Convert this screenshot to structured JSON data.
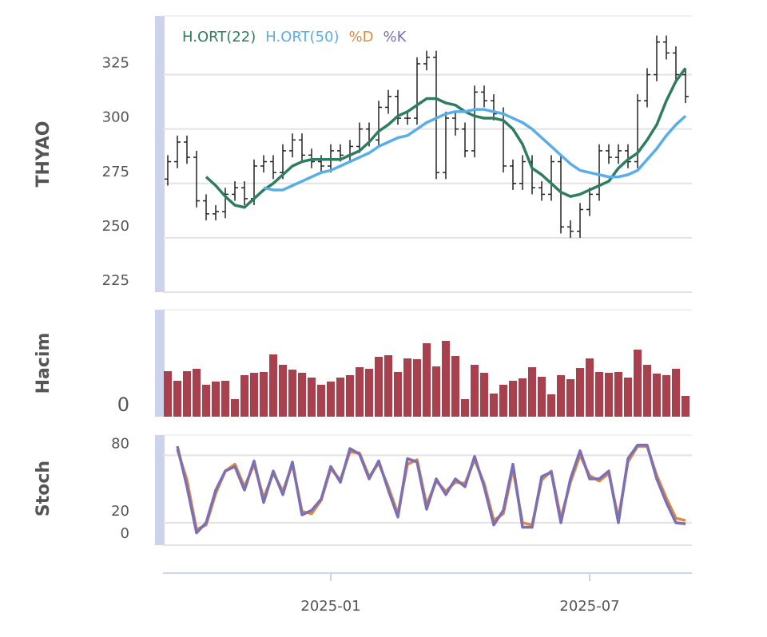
{
  "chart_data": [
    {
      "type": "ohlc",
      "title": "THYAO",
      "color": "#222222",
      "open": [
        277,
        285,
        294,
        287,
        267,
        261,
        262,
        270,
        273,
        268,
        283,
        285,
        280,
        290,
        295,
        288,
        285,
        283,
        290,
        288,
        292,
        300,
        295,
        310,
        315,
        305,
        305,
        330,
        333,
        280,
        305,
        300,
        290,
        317,
        313,
        307,
        283,
        275,
        285,
        273,
        270,
        285,
        255,
        253,
        263,
        270,
        290,
        287,
        290,
        285,
        313,
        325,
        340,
        335,
        325
      ],
      "high": [
        288,
        297,
        297,
        290,
        270,
        265,
        273,
        276,
        276,
        286,
        288,
        288,
        293,
        298,
        298,
        291,
        288,
        293,
        293,
        295,
        303,
        303,
        313,
        318,
        318,
        308,
        333,
        336,
        336,
        308,
        308,
        303,
        320,
        320,
        316,
        310,
        286,
        288,
        288,
        276,
        288,
        288,
        258,
        266,
        273,
        293,
        293,
        293,
        293,
        316,
        328,
        343,
        343,
        338,
        328
      ],
      "low": [
        274,
        282,
        284,
        264,
        258,
        258,
        259,
        267,
        265,
        265,
        280,
        277,
        277,
        287,
        285,
        282,
        280,
        280,
        285,
        285,
        289,
        292,
        292,
        307,
        302,
        302,
        302,
        327,
        277,
        277,
        297,
        287,
        287,
        310,
        304,
        280,
        272,
        272,
        270,
        267,
        267,
        252,
        250,
        250,
        260,
        267,
        284,
        284,
        282,
        282,
        310,
        322,
        332,
        322,
        312
      ],
      "close": [
        285,
        294,
        287,
        267,
        261,
        262,
        270,
        273,
        268,
        283,
        285,
        280,
        290,
        295,
        288,
        285,
        283,
        290,
        288,
        292,
        300,
        295,
        310,
        315,
        305,
        305,
        330,
        333,
        280,
        305,
        300,
        290,
        317,
        313,
        307,
        283,
        275,
        285,
        273,
        270,
        285,
        255,
        253,
        263,
        270,
        290,
        287,
        290,
        285,
        313,
        325,
        340,
        335,
        325,
        315
      ],
      "series": [
        {
          "name": "H.ORT(22)",
          "color": "#2e7d63",
          "values": [
            null,
            null,
            null,
            null,
            278,
            274,
            269,
            265,
            264,
            268,
            272,
            275,
            279,
            283,
            285,
            286,
            286,
            286,
            286,
            288,
            290,
            294,
            299,
            302,
            306,
            308,
            311,
            314,
            314,
            312,
            311,
            308,
            306,
            305,
            305,
            304,
            300,
            293,
            282,
            279,
            275,
            271,
            269,
            270,
            272,
            274,
            276,
            282,
            286,
            289,
            295,
            302,
            313,
            322,
            328
          ]
        },
        {
          "name": "H.ORT(50)",
          "color": "#5aaee8",
          "values": [
            null,
            null,
            null,
            null,
            null,
            null,
            null,
            null,
            null,
            null,
            273,
            272,
            272,
            274,
            276,
            278,
            280,
            281,
            283,
            285,
            287,
            289,
            292,
            294,
            296,
            297,
            300,
            303,
            305,
            307,
            308,
            308,
            309,
            309,
            308,
            307,
            305,
            303,
            300,
            296,
            292,
            288,
            284,
            281,
            280,
            279,
            278,
            278,
            279,
            281,
            286,
            291,
            297,
            302,
            306
          ]
        }
      ],
      "ylim": [
        225,
        352
      ],
      "yticks": [
        225,
        250,
        275,
        300,
        325
      ],
      "grid": true
    },
    {
      "type": "bar",
      "title": "Hacim",
      "color": "#a8404d",
      "values": [
        57,
        45,
        57,
        60,
        40,
        44,
        45,
        22,
        52,
        55,
        56,
        78,
        65,
        59,
        55,
        49,
        40,
        44,
        49,
        52,
        62,
        60,
        75,
        77,
        56,
        73,
        72,
        92,
        63,
        95,
        76,
        22,
        65,
        55,
        29,
        40,
        45,
        48,
        62,
        50,
        28,
        52,
        47,
        61,
        73,
        56,
        55,
        56,
        49,
        84,
        65,
        54,
        52,
        60,
        26
      ],
      "ylim": [
        0,
        134
      ],
      "yticks": [
        0
      ],
      "grid": false
    },
    {
      "type": "line",
      "title": "Stoch",
      "categories": [
        null,
        null,
        null,
        null,
        null,
        null,
        null,
        null,
        null,
        null,
        null,
        null,
        null,
        null,
        null,
        null,
        null,
        "2025-01",
        null,
        null,
        null,
        null,
        null,
        null,
        null,
        null,
        null,
        null,
        null,
        null,
        null,
        null,
        null,
        null,
        null,
        null,
        null,
        null,
        null,
        null,
        null,
        null,
        null,
        null,
        "2025-07",
        null,
        null,
        null,
        null,
        null,
        null,
        null,
        null,
        null,
        null
      ],
      "series": [
        {
          "name": "%D",
          "color": "#e08a3c",
          "values": [
            null,
            85,
            58,
            14,
            18,
            46,
            66,
            72,
            52,
            72,
            42,
            64,
            48,
            72,
            30,
            28,
            40,
            68,
            58,
            83,
            82,
            61,
            73,
            52,
            28,
            72,
            76,
            36,
            57,
            48,
            56,
            55,
            76,
            55,
            22,
            28,
            68,
            20,
            18,
            58,
            66,
            24,
            56,
            80,
            62,
            57,
            64,
            24,
            74,
            88,
            88,
            62,
            42,
            24,
            22
          ]
        },
        {
          "name": "%K",
          "color": "#7b6fb5",
          "values": [
            null,
            88,
            52,
            11,
            20,
            49,
            66,
            70,
            49,
            75,
            38,
            66,
            45,
            74,
            27,
            31,
            41,
            70,
            56,
            86,
            81,
            59,
            75,
            49,
            25,
            77,
            74,
            32,
            59,
            45,
            59,
            52,
            79,
            52,
            18,
            31,
            72,
            16,
            16,
            61,
            65,
            20,
            59,
            84,
            59,
            59,
            66,
            20,
            77,
            89,
            89,
            59,
            38,
            20,
            19
          ]
        }
      ],
      "ylim": [
        0,
        98
      ],
      "yticks": [
        0,
        20,
        80
      ],
      "grid": true
    }
  ]
}
